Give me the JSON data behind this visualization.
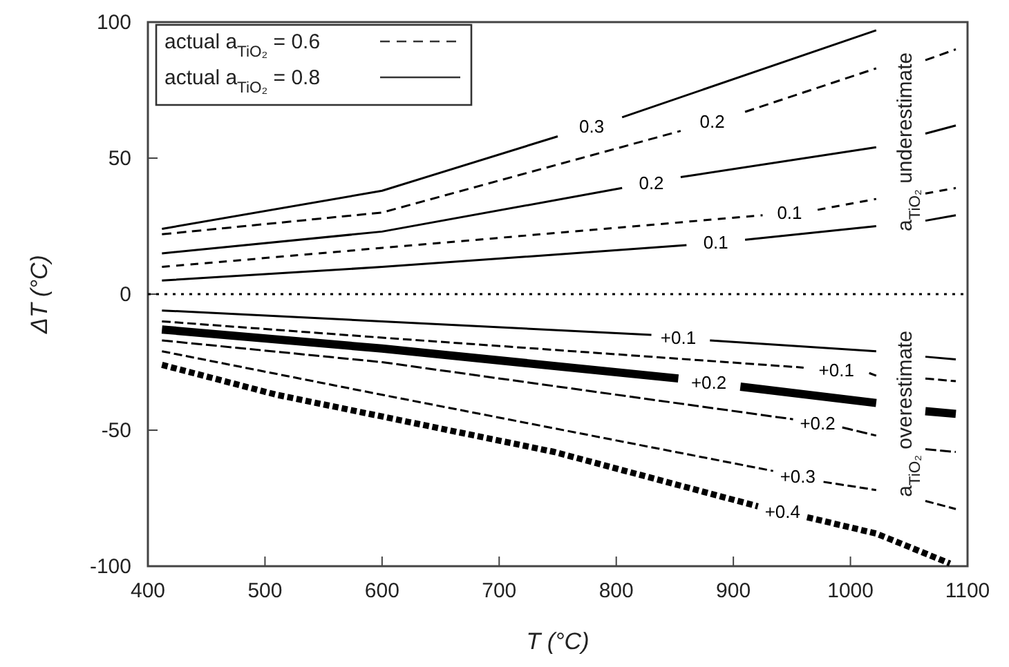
{
  "chart_data": {
    "type": "line",
    "xlabel": "T (°C)",
    "ylabel": "ΔT (°C)",
    "xlim": [
      400,
      1100
    ],
    "xticks": [
      400,
      500,
      600,
      700,
      800,
      900,
      1000,
      1100
    ],
    "ylim": [
      -100,
      100
    ],
    "yticks": [
      -100,
      -50,
      0,
      50,
      100
    ],
    "grid": false,
    "marker": "none",
    "ref_lines": [
      {
        "axis": "y",
        "value": 0,
        "line_style": "dotted",
        "color": "#000000"
      }
    ],
    "annotations": [
      "actual a$_{TiO₂}$ = 0.6",
      "actual a$_{TiO₂}$ = 0.8",
      "a$_{TiO₂}$ underestimate",
      "a$_{TiO₂}$ overestimate"
    ],
    "series": [
      {
        "name": "0.3",
        "color": "#000000",
        "line_style": "solid",
        "x": [
          412,
          600,
          750,
          779,
          805,
          1022
        ],
        "values": [
          24,
          38,
          58,
          null,
          65,
          97
        ]
      },
      {
        "name": "0.2",
        "color": "#000000",
        "line_style": "dashed",
        "x": [
          412,
          600,
          855,
          882,
          910,
          1022,
          1045,
          1064,
          1090
        ],
        "values": [
          22,
          30,
          60,
          null,
          67,
          83,
          null,
          86,
          90
        ]
      },
      {
        "name": "0.2",
        "color": "#000000",
        "line_style": "solid",
        "x": [
          412,
          600,
          805,
          830,
          855,
          1022,
          1045,
          1064,
          1090
        ],
        "values": [
          15,
          23,
          39,
          null,
          43,
          54,
          null,
          59,
          62
        ]
      },
      {
        "name": "0.1",
        "color": "#000000",
        "line_style": "dashed",
        "x": [
          412,
          600,
          925,
          948,
          972,
          1022,
          1045,
          1064,
          1090
        ],
        "values": [
          10,
          17,
          29,
          null,
          31,
          35,
          null,
          37,
          39
        ]
      },
      {
        "name": "0.1",
        "color": "#000000",
        "line_style": "solid",
        "x": [
          412,
          600,
          860,
          885,
          910,
          1022,
          1045,
          1064,
          1090
        ],
        "values": [
          5,
          10,
          18,
          null,
          20,
          25,
          null,
          27,
          29
        ]
      },
      {
        "name": "+0.1",
        "color": "#000000",
        "line_style": "solid",
        "x": [
          412,
          600,
          830,
          853,
          880,
          1022,
          1045,
          1064,
          1090
        ],
        "values": [
          -6,
          -10,
          -15,
          null,
          -17,
          -21,
          null,
          -23,
          -24
        ]
      },
      {
        "name": "+0.1",
        "color": "#000000",
        "line_style": "dashed",
        "x": [
          412,
          600,
          960,
          988,
          1016,
          1022,
          1045,
          1064,
          1090
        ],
        "values": [
          -10,
          -16,
          -27,
          null,
          -29,
          -30,
          null,
          -31,
          -32
        ]
      },
      {
        "name": "+0.2",
        "color": "#000000",
        "line_style": "solid",
        "x": [
          412,
          600,
          853,
          879,
          906,
          1022,
          1045,
          1064,
          1090
        ],
        "values": [
          -13,
          -20,
          -31,
          null,
          -34,
          -40,
          null,
          -43,
          -44
        ]
      },
      {
        "name": "+0.2",
        "color": "#000000",
        "line_style": "dashed",
        "x": [
          412,
          600,
          951,
          972,
          993,
          1022,
          1045,
          1064,
          1090
        ],
        "values": [
          -17,
          -25,
          -46,
          null,
          -49,
          -52,
          null,
          -57,
          -58
        ]
      },
      {
        "name": "+0.3",
        "color": "#000000",
        "line_style": "dashed",
        "x": [
          412,
          600,
          934,
          955,
          977,
          1022,
          1045,
          1064,
          1090
        ],
        "values": [
          -21,
          -37,
          -65,
          null,
          -69,
          -72,
          null,
          -76,
          -79
        ]
      },
      {
        "name": "+0.4",
        "color": "#000000",
        "line_style": "dashed",
        "x": [
          412,
          510,
          747,
          921,
          942,
          963,
          1022,
          1085
        ],
        "values": [
          -26,
          -37,
          -58,
          -78,
          null,
          -82,
          -88,
          -99
        ]
      }
    ]
  }
}
